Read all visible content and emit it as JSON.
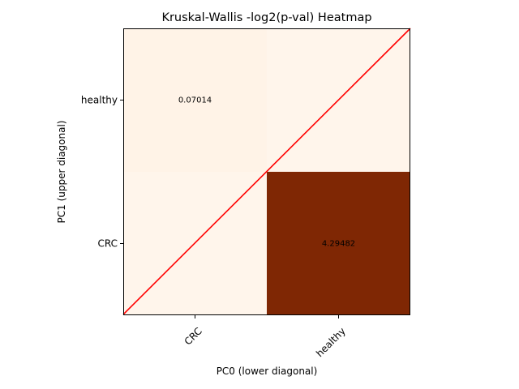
{
  "chart_data": {
    "type": "heatmap",
    "title": "Kruskal-Wallis -log2(p-val) Heatmap",
    "xlabel": "PC0 (lower diagonal)",
    "ylabel": "PC1 (upper diagonal)",
    "x_categories": [
      "CRC",
      "healthy"
    ],
    "y_categories": [
      "healthy",
      "CRC"
    ],
    "cells": [
      {
        "row": "healthy",
        "col": "CRC",
        "value": 0.07014,
        "label": "0.07014"
      },
      {
        "row": "healthy",
        "col": "healthy",
        "value": 0.0,
        "label": ""
      },
      {
        "row": "CRC",
        "col": "CRC",
        "value": 0.0,
        "label": ""
      },
      {
        "row": "CRC",
        "col": "healthy",
        "value": 4.29482,
        "label": "4.29482"
      }
    ],
    "colormap": "Oranges-to-dark-red",
    "color_range": [
      0,
      4.29482
    ],
    "diagonal_line_color": "#ff0000",
    "grid": false,
    "legend": "none"
  }
}
